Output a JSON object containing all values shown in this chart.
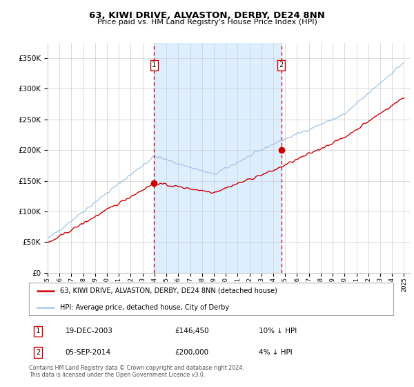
{
  "title": "63, KIWI DRIVE, ALVASTON, DERBY, DE24 8NN",
  "subtitle": "Price paid vs. HM Land Registry's House Price Index (HPI)",
  "ylabel_ticks": [
    "£0",
    "£50K",
    "£100K",
    "£150K",
    "£200K",
    "£250K",
    "£300K",
    "£350K"
  ],
  "ytick_vals": [
    0,
    50000,
    100000,
    150000,
    200000,
    250000,
    300000,
    350000
  ],
  "ylim": [
    0,
    375000
  ],
  "xlim_start": 1995.0,
  "xlim_end": 2025.5,
  "transaction1": {
    "date_dec": 2003.96,
    "price": 146450,
    "label": "1",
    "date_str": "19-DEC-2003",
    "price_str": "£146,450",
    "hpi_str": "10% ↓ HPI"
  },
  "transaction2": {
    "date_dec": 2014.67,
    "price": 200000,
    "label": "2",
    "date_str": "05-SEP-2014",
    "price_str": "£200,000",
    "hpi_str": "4% ↓ HPI"
  },
  "hpi_color": "#a8c8e8",
  "price_color": "#cc0000",
  "shaded_color": "#ddeeff",
  "grid_color": "#cccccc",
  "background_color": "#ffffff",
  "legend_label_red": "63, KIWI DRIVE, ALVASTON, DERBY, DE24 8NN (detached house)",
  "legend_label_blue": "HPI: Average price, detached house, City of Derby",
  "footer_text": "Contains HM Land Registry data © Crown copyright and database right 2024.\nThis data is licensed under the Open Government Licence v3.0.",
  "xtick_years": [
    1995,
    1996,
    1997,
    1998,
    1999,
    2000,
    2001,
    2002,
    2003,
    2004,
    2005,
    2006,
    2007,
    2008,
    2009,
    2010,
    2011,
    2012,
    2013,
    2014,
    2015,
    2016,
    2017,
    2018,
    2019,
    2020,
    2021,
    2022,
    2023,
    2024,
    2025
  ]
}
